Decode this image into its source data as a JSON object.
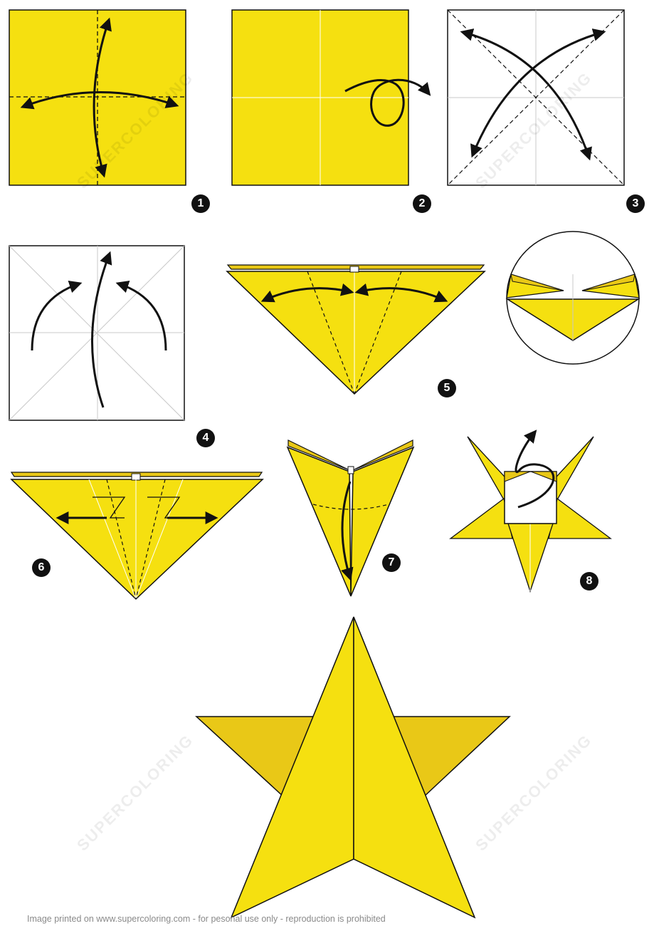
{
  "steps": [
    {
      "number": "1"
    },
    {
      "number": "2"
    },
    {
      "number": "3"
    },
    {
      "number": "4"
    },
    {
      "number": "5"
    },
    {
      "number": "6"
    },
    {
      "number": "7"
    },
    {
      "number": "8"
    }
  ],
  "watermark": "SUPERCOLORING",
  "footer": "Image printed on www.supercoloring.com - for pesonal use only - reproduction is prohibited",
  "colors": {
    "paper_yellow": "#f5e010",
    "paper_yellow_shade": "#e9c817",
    "outline": "#111111",
    "crease": "#c8c8c8"
  }
}
